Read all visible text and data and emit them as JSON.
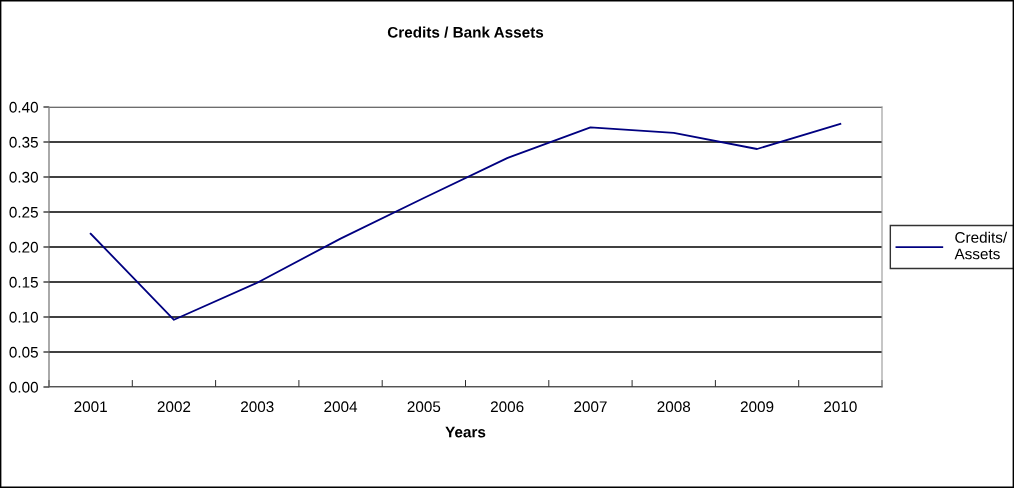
{
  "chart_data": {
    "type": "line",
    "title": "Credits / Bank Assets",
    "xlabel": "Years",
    "categories": [
      "2001",
      "2002",
      "2003",
      "2004",
      "2005",
      "2006",
      "2007",
      "2008",
      "2009",
      "2010"
    ],
    "series": [
      {
        "name": "Credits/ Assets",
        "color": "#000080",
        "values": [
          0.219,
          0.096,
          0.149,
          0.212,
          0.27,
          0.327,
          0.371,
          0.363,
          0.34,
          0.376
        ]
      }
    ],
    "ylim": [
      0,
      0.4
    ],
    "yticks": [
      {
        "value": 0,
        "label": "0.00"
      },
      {
        "value": 0.05,
        "label": "0.05"
      },
      {
        "value": 0.1,
        "label": "0.10"
      },
      {
        "value": 0.15,
        "label": "0.15"
      },
      {
        "value": 0.2,
        "label": "0.20"
      },
      {
        "value": 0.25,
        "label": "0.25"
      },
      {
        "value": 0.3,
        "label": "0.30"
      },
      {
        "value": 0.35,
        "label": "0.35"
      },
      {
        "value": 0.4,
        "label": "0.40"
      }
    ],
    "grid": "y",
    "legend": "right",
    "marker": "none",
    "line_style": "solid"
  }
}
